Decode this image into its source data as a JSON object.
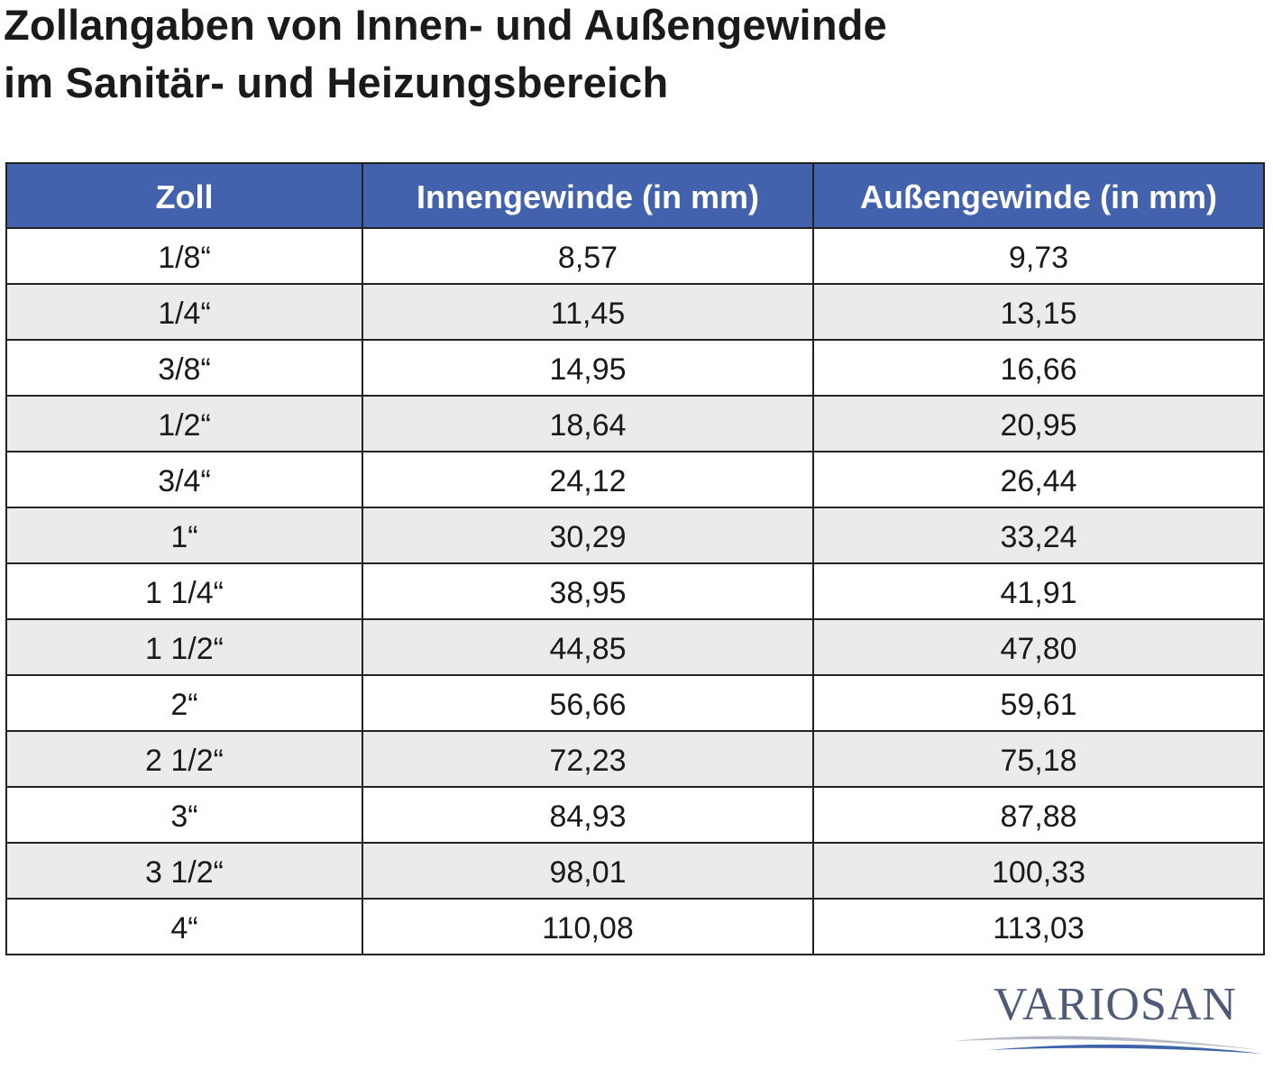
{
  "header": {
    "title": [
      "Zollangaben von Innen- und Außengewinde",
      "im Sanitär- und Heizungsbereich"
    ]
  },
  "table": {
    "columns": [
      "Zoll",
      "Innengewinde (in mm)",
      "Außengewinde (in mm)"
    ],
    "rows": [
      [
        "1/8“",
        "8,57",
        "9,73"
      ],
      [
        "1/4“",
        "11,45",
        "13,15"
      ],
      [
        "3/8“",
        "14,95",
        "16,66"
      ],
      [
        "1/2“",
        "18,64",
        "20,95"
      ],
      [
        "3/4“",
        "24,12",
        "26,44"
      ],
      [
        "1“",
        "30,29",
        "33,24"
      ],
      [
        "1 1/4“",
        "38,95",
        "41,91"
      ],
      [
        "1 1/2“",
        "44,85",
        "47,80"
      ],
      [
        "2“",
        "56,66",
        "59,61"
      ],
      [
        "2 1/2“",
        "72,23",
        "75,18"
      ],
      [
        "3“",
        "84,93",
        "87,88"
      ],
      [
        "3 1/2“",
        "98,01",
        "100,33"
      ],
      [
        "4“",
        "110,08",
        "113,03"
      ]
    ]
  },
  "logo": {
    "text": "VARIOSAN"
  }
}
